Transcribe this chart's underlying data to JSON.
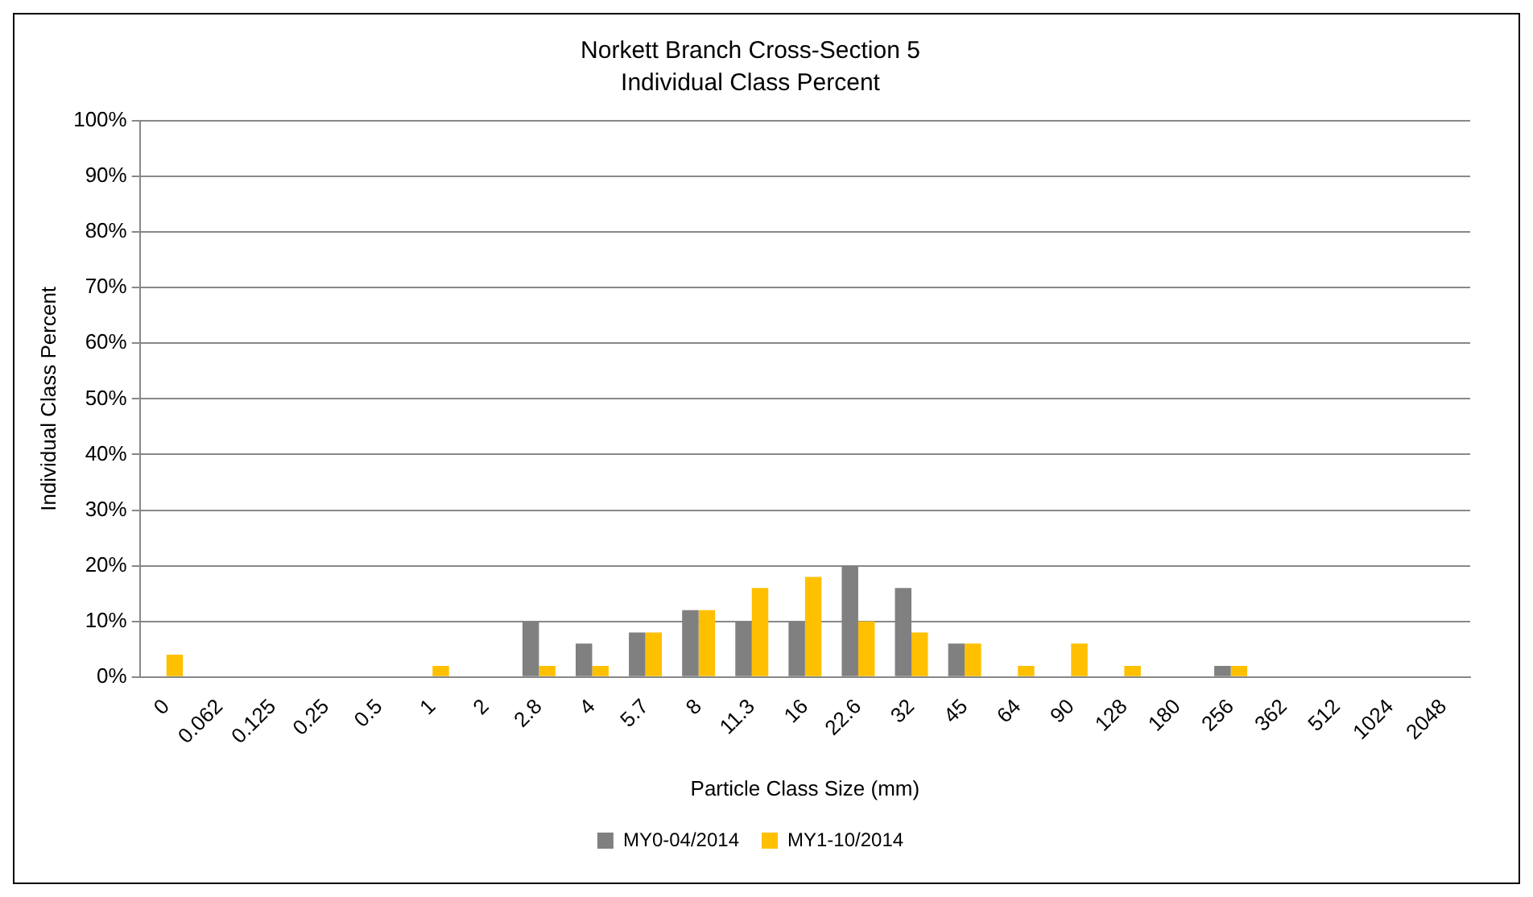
{
  "chart_data": {
    "type": "bar",
    "title": "Norkett Branch Cross-Section 5",
    "subtitle": "Individual Class Percent",
    "xlabel": "Particle Class Size (mm)",
    "ylabel": "Individual Class Percent",
    "categories": [
      "0",
      "0.062",
      "0.125",
      "0.25",
      "0.5",
      "1",
      "2",
      "2.8",
      "4",
      "5.7",
      "8",
      "11.3",
      "16",
      "22.6",
      "32",
      "45",
      "64",
      "90",
      "128",
      "180",
      "256",
      "362",
      "512",
      "1024",
      "2048"
    ],
    "series": [
      {
        "name": "MY0-04/2014",
        "color": "#808080",
        "values": [
          0,
          0,
          0,
          0,
          0,
          0,
          0,
          10,
          6,
          8,
          12,
          10,
          10,
          20,
          16,
          6,
          0,
          0,
          0,
          0,
          2,
          0,
          0,
          0,
          0
        ]
      },
      {
        "name": "MY1-10/2014",
        "color": "#ffc000",
        "values": [
          4,
          0,
          0,
          0,
          0,
          2,
          0,
          2,
          2,
          8,
          12,
          16,
          18,
          10,
          8,
          6,
          2,
          6,
          2,
          0,
          2,
          0,
          0,
          0,
          0
        ]
      }
    ],
    "ylim": [
      0,
      100
    ],
    "yticks": [
      {
        "value": 0,
        "label": "0%"
      },
      {
        "value": 10,
        "label": "10%"
      },
      {
        "value": 20,
        "label": "20%"
      },
      {
        "value": 30,
        "label": "30%"
      },
      {
        "value": 40,
        "label": "40%"
      },
      {
        "value": 50,
        "label": "50%"
      },
      {
        "value": 60,
        "label": "60%"
      },
      {
        "value": 70,
        "label": "70%"
      },
      {
        "value": 80,
        "label": "80%"
      },
      {
        "value": 90,
        "label": "90%"
      },
      {
        "value": 100,
        "label": "100%"
      }
    ],
    "grid": "y",
    "legend": "bottom"
  }
}
